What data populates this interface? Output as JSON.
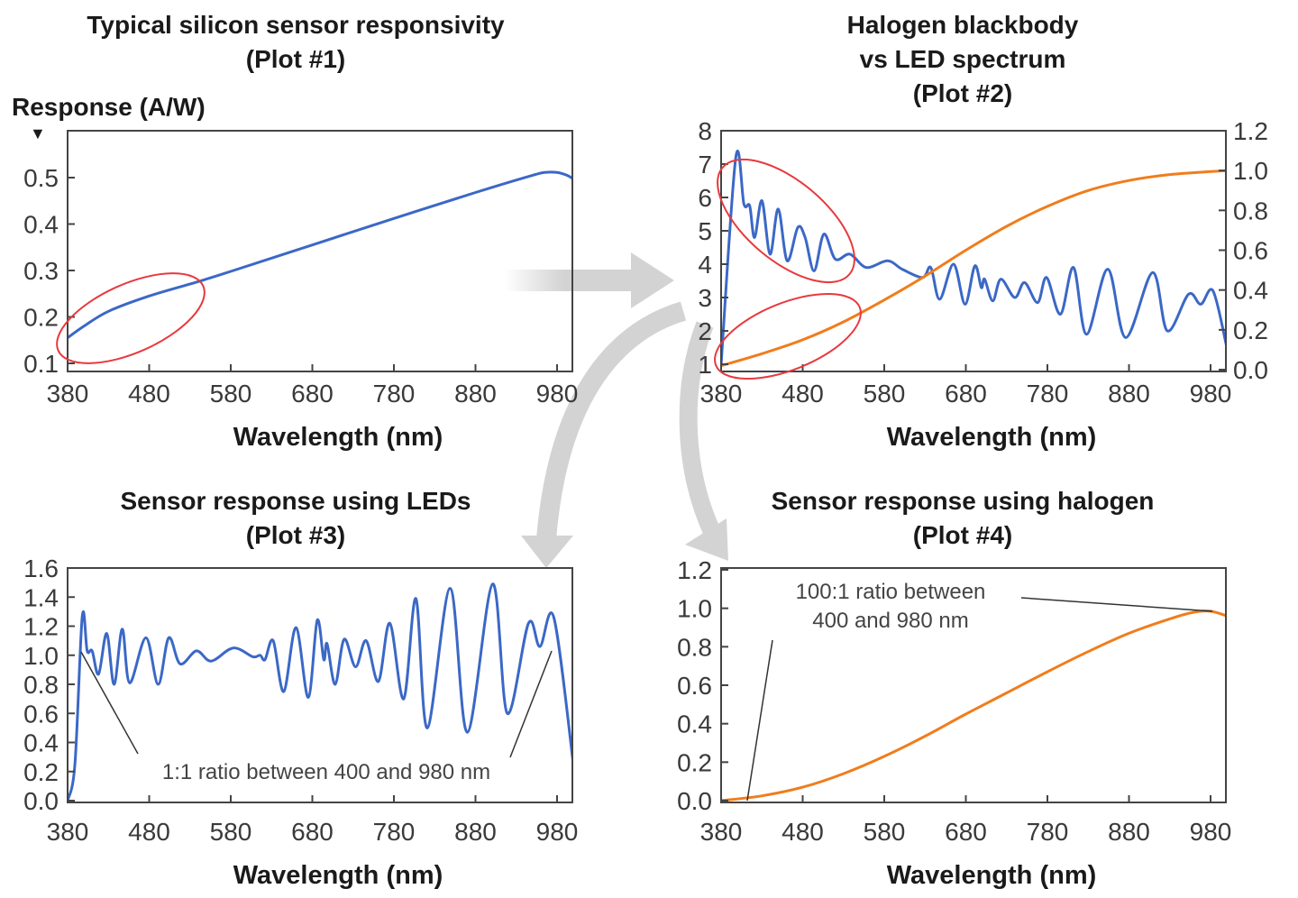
{
  "colors": {
    "led": "#3b68c6",
    "halogen": "#f07d1c",
    "highlight": "#e8393d",
    "arrow": "#d3d3d3"
  },
  "chart_data": [
    {
      "type": "line",
      "title": [
        "Typical silicon sensor responsivity",
        "(Plot #1)"
      ],
      "xlabel": "Wavelength (nm)",
      "ylabel": "Response (A/W)",
      "ylabel_marker": "▼",
      "xlim": [
        380,
        1000
      ],
      "ylim": [
        0.1,
        0.5
      ],
      "xticks": [
        "380",
        "480",
        "580",
        "680",
        "780",
        "880",
        "980"
      ],
      "yticks": [
        "0.1",
        "0.2",
        "0.3",
        "0.4",
        "0.5"
      ],
      "series": [
        {
          "color": "#3b68c6",
          "points": [
            [
              380,
              0.155
            ],
            [
              400,
              0.18
            ],
            [
              430,
              0.212
            ],
            [
              480,
              0.245
            ],
            [
              540,
              0.276
            ],
            [
              580,
              0.298
            ],
            [
              680,
              0.355
            ],
            [
              780,
              0.412
            ],
            [
              880,
              0.468
            ],
            [
              950,
              0.505
            ],
            [
              965,
              0.511
            ],
            [
              980,
              0.511
            ],
            [
              992,
              0.505
            ],
            [
              1000,
              0.497
            ]
          ]
        }
      ]
    },
    {
      "type": "line",
      "title": [
        "Halogen blackbody",
        "vs LED spectrum",
        "(Plot #2)"
      ],
      "xlabel": "Wavelength (nm)",
      "xlim": [
        380,
        1000
      ],
      "ylim": [
        1,
        8
      ],
      "y2lim": [
        0.0,
        1.2
      ],
      "xticks": [
        "380",
        "480",
        "580",
        "680",
        "780",
        "880",
        "980"
      ],
      "yticks": [
        "1",
        "2",
        "3",
        "4",
        "5",
        "6",
        "7",
        "8"
      ],
      "y2ticks": [
        "0.0",
        "0.2",
        "0.4",
        "0.6",
        "0.8",
        "1.0",
        "1.2"
      ],
      "series": [
        {
          "axis": "left",
          "color": "#3b68c6",
          "points": [
            [
              380,
              1.0
            ],
            [
              398,
              7.2
            ],
            [
              408,
              5.8
            ],
            [
              415,
              5.75
            ],
            [
              421,
              4.8
            ],
            [
              430,
              5.9
            ],
            [
              440,
              4.3
            ],
            [
              450,
              5.65
            ],
            [
              461,
              4.1
            ],
            [
              474,
              5.1
            ],
            [
              483,
              4.8
            ],
            [
              494,
              3.8
            ],
            [
              506,
              4.9
            ],
            [
              520,
              4.15
            ],
            [
              538,
              4.3
            ],
            [
              558,
              3.9
            ],
            [
              584,
              4.1
            ],
            [
              602,
              3.85
            ],
            [
              627,
              3.6
            ],
            [
              637,
              3.9
            ],
            [
              648,
              2.95
            ],
            [
              665,
              4.0
            ],
            [
              679,
              2.8
            ],
            [
              691,
              3.95
            ],
            [
              699,
              3.3
            ],
            [
              703,
              3.55
            ],
            [
              713,
              2.9
            ],
            [
              723,
              3.55
            ],
            [
              740,
              3.0
            ],
            [
              752,
              3.45
            ],
            [
              768,
              2.85
            ],
            [
              779,
              3.6
            ],
            [
              796,
              2.5
            ],
            [
              812,
              3.9
            ],
            [
              828,
              1.9
            ],
            [
              854,
              3.85
            ],
            [
              876,
              1.8
            ],
            [
              909,
              3.75
            ],
            [
              927,
              2.0
            ],
            [
              953,
              3.1
            ],
            [
              968,
              2.8
            ],
            [
              983,
              3.2
            ],
            [
              1000,
              1.5
            ]
          ]
        },
        {
          "axis": "right",
          "color": "#f07d1c",
          "points": [
            [
              380,
              0.02
            ],
            [
              430,
              0.08
            ],
            [
              480,
              0.15
            ],
            [
              530,
              0.24
            ],
            [
              580,
              0.35
            ],
            [
              630,
              0.47
            ],
            [
              680,
              0.6
            ],
            [
              730,
              0.72
            ],
            [
              780,
              0.82
            ],
            [
              830,
              0.9
            ],
            [
              880,
              0.95
            ],
            [
              930,
              0.98
            ],
            [
              1000,
              1.0
            ]
          ]
        }
      ]
    },
    {
      "type": "line",
      "title": [
        "Sensor response using LEDs",
        "(Plot #3)"
      ],
      "xlabel": "Wavelength (nm)",
      "xlim": [
        380,
        1000
      ],
      "ylim": [
        0.0,
        1.6
      ],
      "xticks": [
        "380",
        "480",
        "580",
        "680",
        "780",
        "880",
        "980"
      ],
      "yticks": [
        "0.0",
        "0.2",
        "0.4",
        "0.6",
        "0.8",
        "1.0",
        "1.2",
        "1.4",
        "1.6"
      ],
      "annotations": [
        "1:1 ratio between 400 and 980 nm"
      ],
      "series": [
        {
          "color": "#3b68c6",
          "points": [
            [
              380,
              0.0
            ],
            [
              389,
              0.25
            ],
            [
              398,
              1.27
            ],
            [
              404,
              1.03
            ],
            [
              410,
              1.03
            ],
            [
              418,
              0.87
            ],
            [
              428,
              1.15
            ],
            [
              437,
              0.8
            ],
            [
              447,
              1.18
            ],
            [
              456,
              0.81
            ],
            [
              476,
              1.12
            ],
            [
              491,
              0.8
            ],
            [
              504,
              1.12
            ],
            [
              518,
              0.94
            ],
            [
              538,
              1.03
            ],
            [
              556,
              0.96
            ],
            [
              583,
              1.05
            ],
            [
              607,
              0.99
            ],
            [
              616,
              1.0
            ],
            [
              622,
              0.97
            ],
            [
              632,
              1.1
            ],
            [
              645,
              0.75
            ],
            [
              660,
              1.19
            ],
            [
              675,
              0.71
            ],
            [
              686,
              1.24
            ],
            [
              694,
              0.97
            ],
            [
              698,
              1.08
            ],
            [
              708,
              0.8
            ],
            [
              719,
              1.11
            ],
            [
              733,
              0.92
            ],
            [
              746,
              1.1
            ],
            [
              761,
              0.82
            ],
            [
              775,
              1.22
            ],
            [
              792,
              0.7
            ],
            [
              807,
              1.39
            ],
            [
              821,
              0.5
            ],
            [
              849,
              1.46
            ],
            [
              870,
              0.47
            ],
            [
              901,
              1.49
            ],
            [
              919,
              0.6
            ],
            [
              945,
              1.22
            ],
            [
              959,
              1.06
            ],
            [
              976,
              1.26
            ],
            [
              1000,
              0.25
            ]
          ]
        }
      ]
    },
    {
      "type": "line",
      "title": [
        "Sensor response using halogen",
        "(Plot #4)"
      ],
      "xlabel": "Wavelength (nm)",
      "xlim": [
        380,
        1000
      ],
      "ylim": [
        0.0,
        1.2
      ],
      "xticks": [
        "380",
        "480",
        "580",
        "680",
        "780",
        "880",
        "980"
      ],
      "yticks": [
        "0.0",
        "0.2",
        "0.4",
        "0.6",
        "0.8",
        "1.0",
        "1.2"
      ],
      "annotations": [
        "100:1 ratio between",
        "400 and 980 nm"
      ],
      "series": [
        {
          "color": "#f07d1c",
          "points": [
            [
              380,
              0.0
            ],
            [
              430,
              0.025
            ],
            [
              480,
              0.07
            ],
            [
              530,
              0.14
            ],
            [
              580,
              0.23
            ],
            [
              630,
              0.335
            ],
            [
              680,
              0.45
            ],
            [
              730,
              0.56
            ],
            [
              780,
              0.67
            ],
            [
              830,
              0.775
            ],
            [
              880,
              0.87
            ],
            [
              930,
              0.945
            ],
            [
              960,
              0.98
            ],
            [
              980,
              0.985
            ],
            [
              1000,
              0.96
            ]
          ]
        }
      ]
    }
  ]
}
